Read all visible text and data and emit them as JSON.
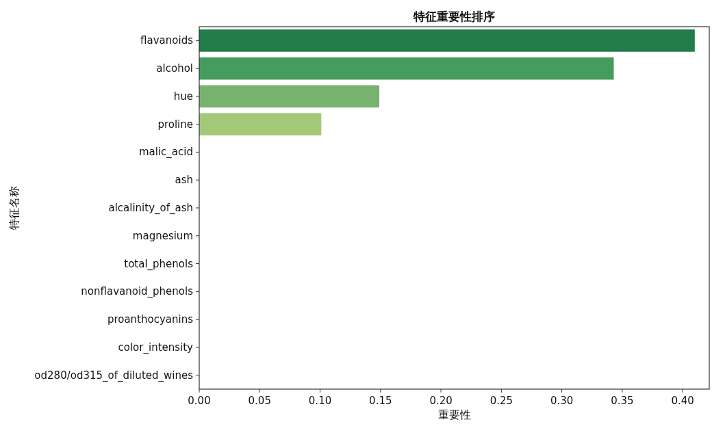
{
  "chart_data": {
    "type": "bar",
    "orientation": "horizontal",
    "title": "特征重要性排序",
    "xlabel": "重要性",
    "ylabel": "特征名称",
    "categories": [
      "flavanoids",
      "alcohol",
      "hue",
      "proline",
      "malic_acid",
      "ash",
      "alcalinity_of_ash",
      "magnesium",
      "total_phenols",
      "nonflavanoid_phenols",
      "proanthocyanins",
      "color_intensity",
      "od280/od315_of_diluted_wines"
    ],
    "values": [
      0.41,
      0.343,
      0.149,
      0.101,
      0,
      0,
      0,
      0,
      0,
      0,
      0,
      0,
      0
    ],
    "colors": [
      "#237d4b",
      "#459c5d",
      "#77b36e",
      "#a2c878",
      "#b9d88a",
      "#c8e09a",
      "#d4e6a6",
      "#deecb2",
      "#e6f0bd",
      "#ecf4c6",
      "#f1f7cf",
      "#f5f9d8",
      "#f8fbe0"
    ],
    "xlim": [
      0,
      0.422
    ],
    "xticks": [
      {
        "value": 0,
        "label": "0.00"
      },
      {
        "value": 0.05,
        "label": "0.05"
      },
      {
        "value": 0.1,
        "label": "0.10"
      },
      {
        "value": 0.15,
        "label": "0.15"
      },
      {
        "value": 0.2,
        "label": "0.20"
      },
      {
        "value": 0.25,
        "label": "0.25"
      },
      {
        "value": 0.3,
        "label": "0.30"
      },
      {
        "value": 0.35,
        "label": "0.35"
      },
      {
        "value": 0.4,
        "label": "0.40"
      }
    ],
    "grid": false
  }
}
